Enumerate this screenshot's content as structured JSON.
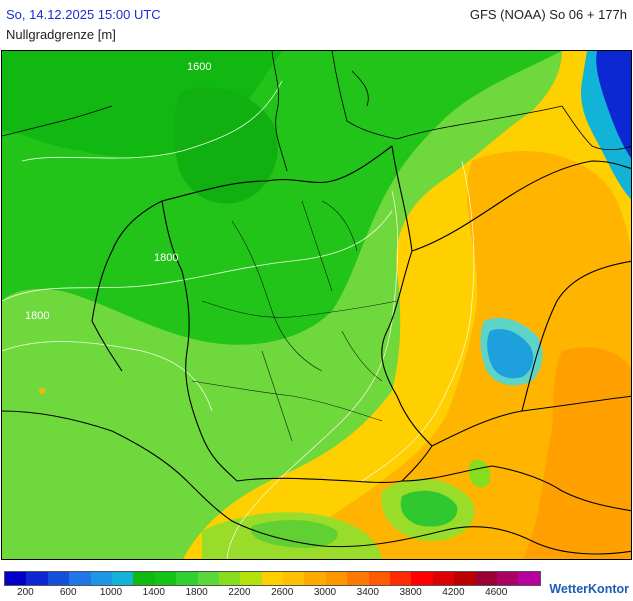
{
  "header": {
    "datetime": "So, 14.12.2025 15:00 UTC",
    "model": "GFS (NOAA) So 06 + 177h",
    "parameter": "Nullgradgrenze [m]"
  },
  "map": {
    "contour_labels": [
      "1600",
      "1800",
      "1800"
    ]
  },
  "legend": {
    "colors": [
      "#0000c8",
      "#0b28d2",
      "#1450dc",
      "#2076e6",
      "#1e96e6",
      "#11b4d6",
      "#10b810",
      "#14c414",
      "#30d030",
      "#5ad83a",
      "#88dc1e",
      "#b4e00c",
      "#ffd000",
      "#ffc000",
      "#ffaa00",
      "#ff9600",
      "#ff7800",
      "#ff5a00",
      "#ff2a00",
      "#ff0000",
      "#dd0000",
      "#bb0000",
      "#990033",
      "#aa0066",
      "#b800a0"
    ],
    "labels": [
      "200",
      "600",
      "1000",
      "1400",
      "1800",
      "2200",
      "2600",
      "3000",
      "3400",
      "3800",
      "4200",
      "4600"
    ]
  },
  "branding": {
    "logo_text": "WetterKontor"
  }
}
